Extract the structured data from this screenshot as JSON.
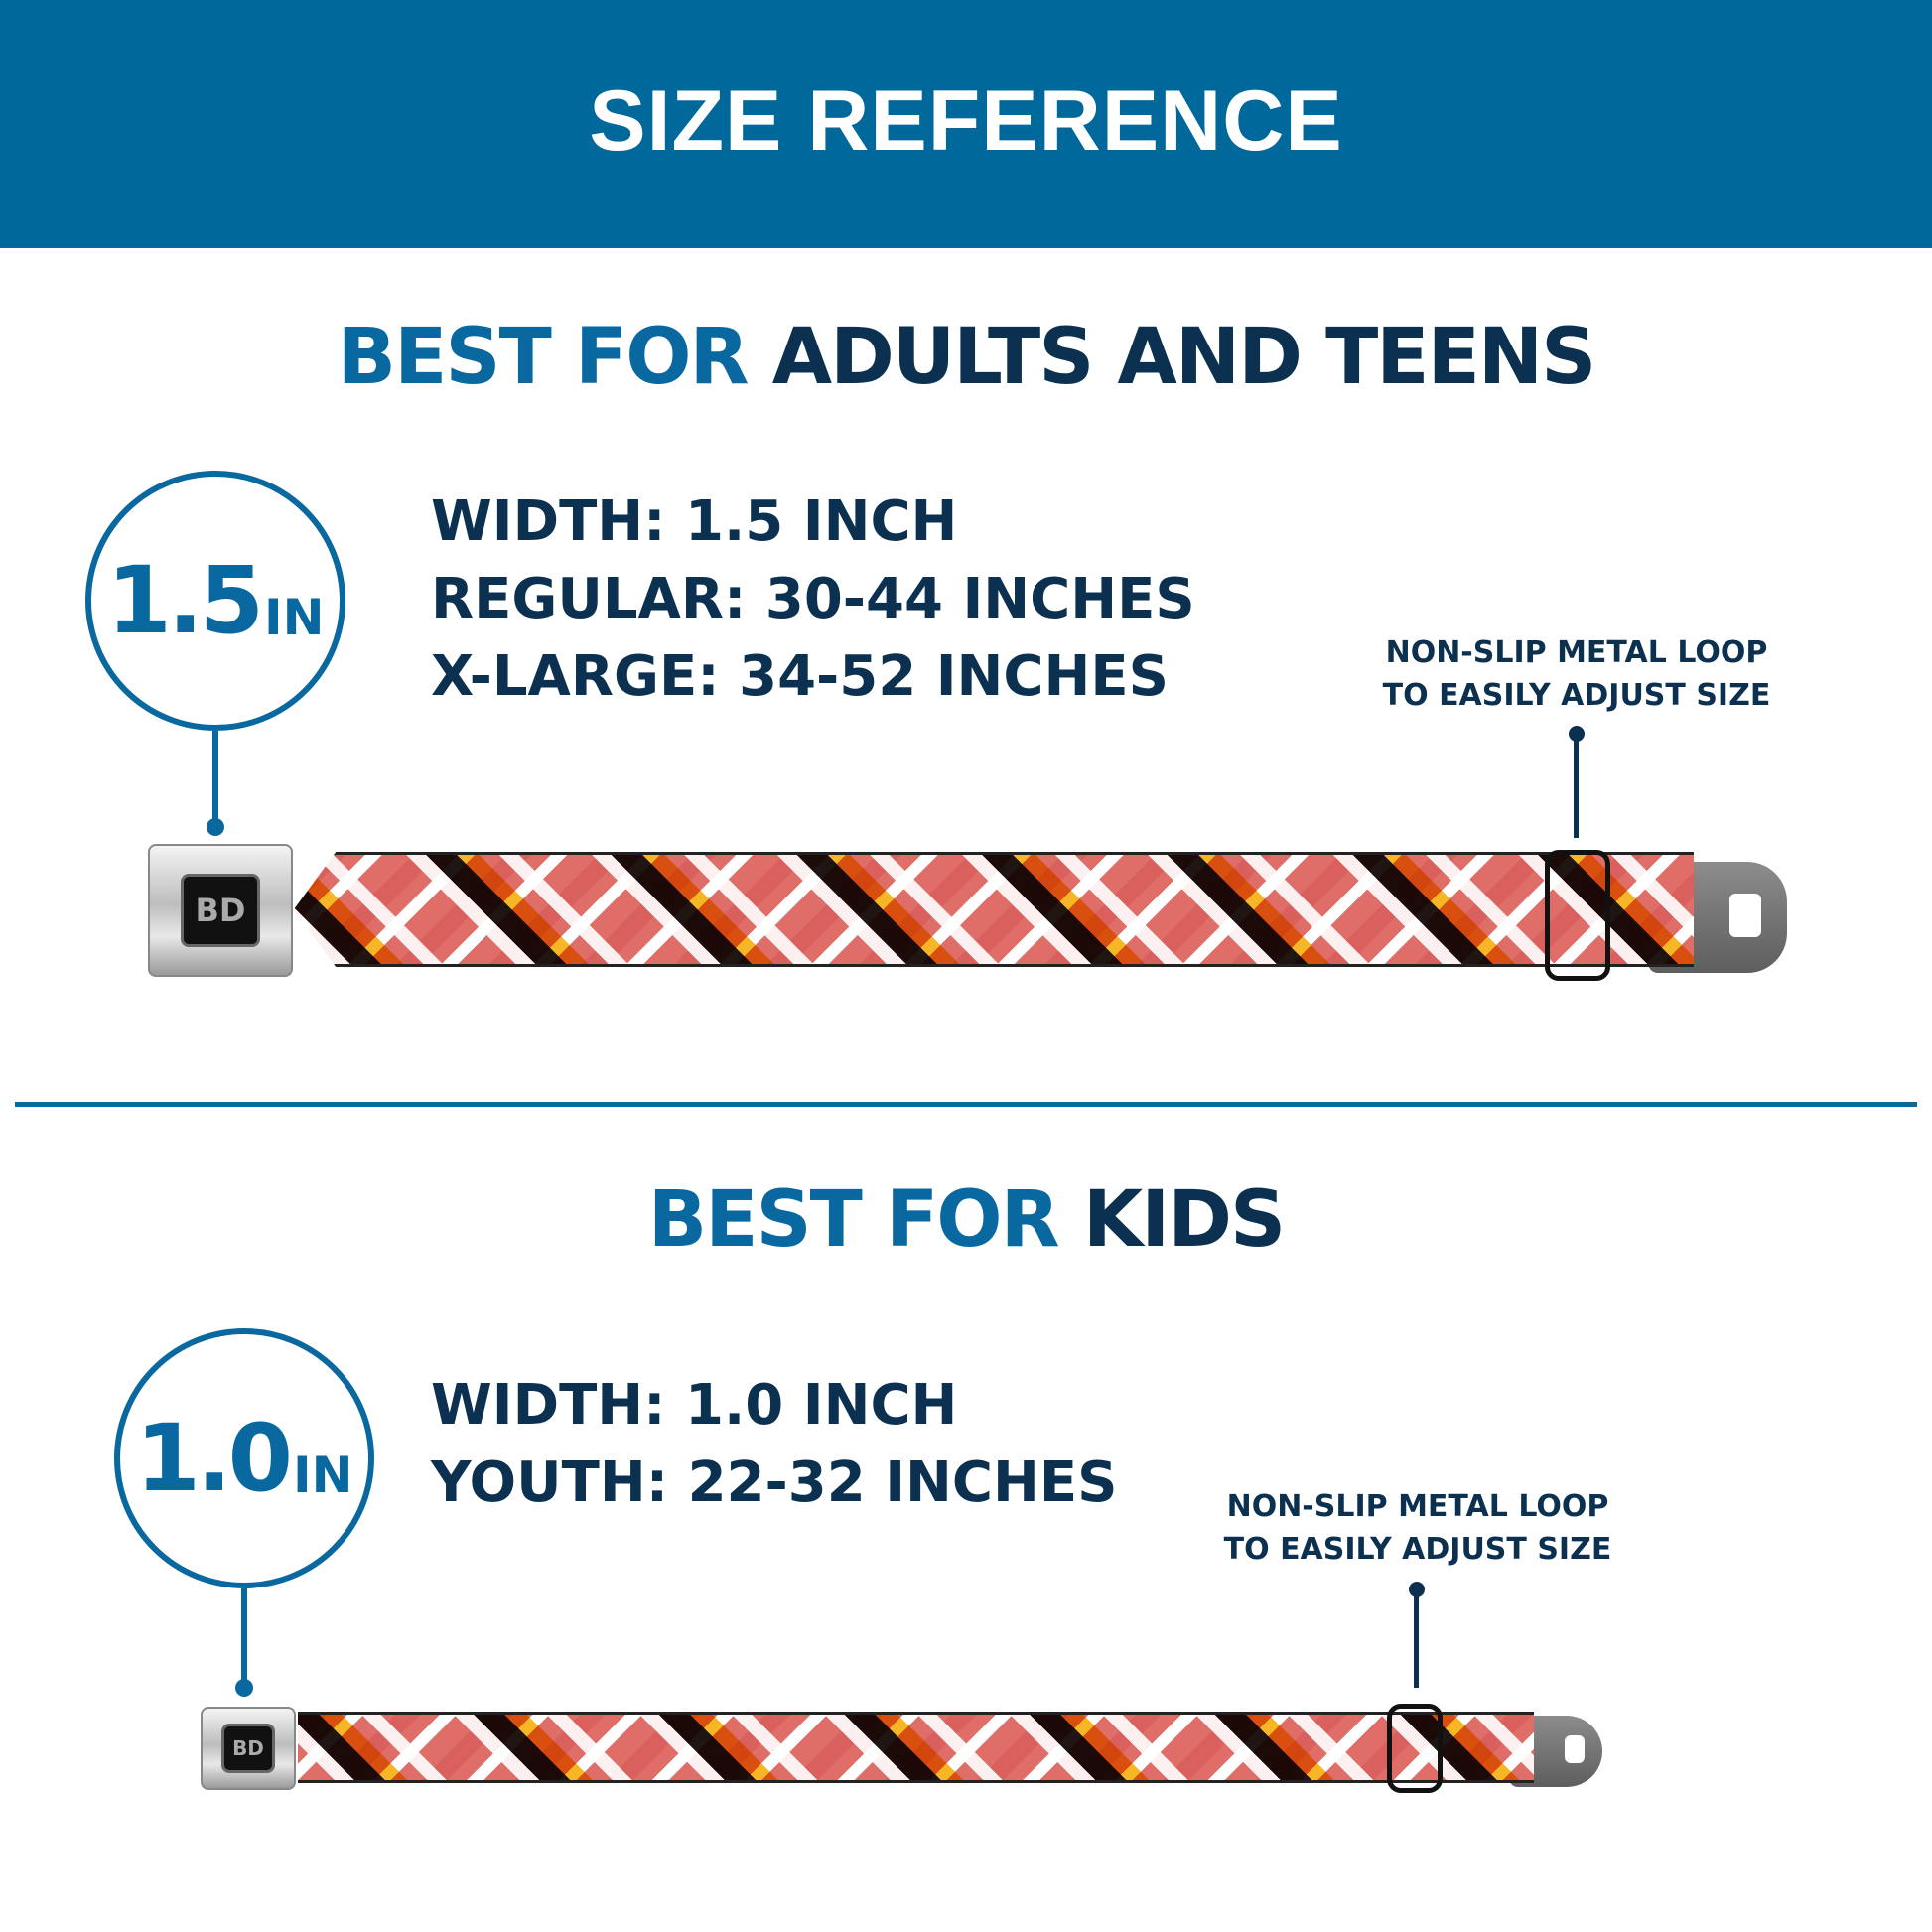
{
  "header": {
    "title": "SIZE REFERENCE",
    "color": "#00689a"
  },
  "sections": [
    {
      "heading_highlight": "BEST FOR",
      "heading_rest": "ADULTS AND TEENS",
      "badge_value": "1.5",
      "badge_unit": "IN",
      "specs": [
        "WIDTH: 1.5 INCH",
        "REGULAR: 30-44 INCHES",
        "X-LARGE: 34-52 INCHES"
      ],
      "note_lines": [
        "NON-SLIP METAL LOOP",
        "TO EASILY ADJUST SIZE"
      ],
      "buckle_logo": "BD"
    },
    {
      "heading_highlight": "BEST FOR",
      "heading_rest": "KIDS",
      "badge_value": "1.0",
      "badge_unit": "IN",
      "specs": [
        "WIDTH: 1.0 INCH",
        "YOUTH: 22-32 INCHES"
      ],
      "note_lines": [
        "NON-SLIP METAL LOOP",
        "TO EASILY ADJUST SIZE"
      ],
      "buckle_logo": "BD"
    }
  ],
  "colors": {
    "accent_blue": "#0a68a0",
    "navy": "#0c3150",
    "plaid_salmon": "#e06e68",
    "plaid_yellow": "#f7b21a",
    "plaid_black": "#120806"
  }
}
